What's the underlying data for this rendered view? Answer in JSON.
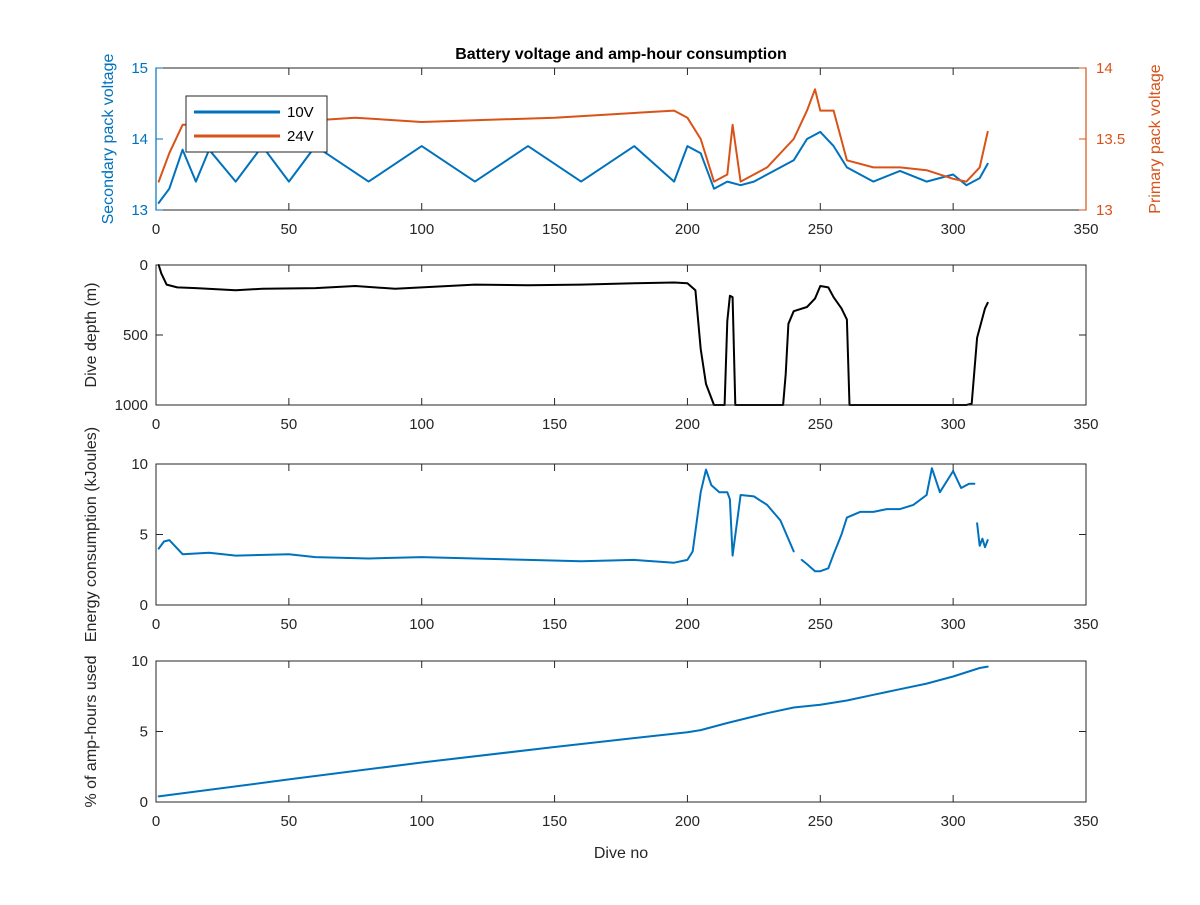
{
  "colors": {
    "series_10v": "#0072BD",
    "series_24v": "#D95319",
    "depth": "#000000",
    "energy": "#0072BD",
    "amp_hours": "#0072BD",
    "axis": "#262626",
    "grid": "#DFDFDF"
  },
  "chart_data": [
    {
      "type": "line",
      "title": "Battery voltage and amp-hour consumption",
      "xlabel": "",
      "ylabel": "Secondary pack voltage",
      "ylabel_right": "Primary pack voltage",
      "xlim": [
        0,
        350
      ],
      "ylim": [
        13,
        15
      ],
      "ylim_right": [
        13,
        14
      ],
      "x_ticks": [
        "0",
        "50",
        "100",
        "150",
        "200",
        "250",
        "300",
        "350"
      ],
      "y_ticks": [
        "13",
        "14",
        "15"
      ],
      "y_ticks_right": [
        "13",
        "13.5",
        "14"
      ],
      "grid": false,
      "legend": "top-left",
      "series": [
        {
          "name": "10V",
          "axis": "left",
          "pattern": "oscillating between about 13.4 and 13.9 for dives 0-200, then 13.2-14.2 afterwards",
          "x": [
            1,
            5,
            10,
            15,
            20,
            30,
            40,
            50,
            60,
            80,
            100,
            120,
            140,
            160,
            180,
            195,
            200,
            205,
            210,
            215,
            220,
            225,
            230,
            235,
            240,
            245,
            250,
            255,
            260,
            270,
            280,
            290,
            300,
            305,
            310,
            313
          ],
          "y": [
            13.1,
            13.3,
            13.85,
            13.4,
            13.85,
            13.4,
            13.9,
            13.4,
            13.9,
            13.4,
            13.9,
            13.4,
            13.9,
            13.4,
            13.9,
            13.4,
            13.9,
            13.8,
            13.3,
            13.4,
            13.35,
            13.4,
            13.5,
            13.6,
            13.7,
            14.0,
            14.1,
            13.9,
            13.6,
            13.4,
            13.55,
            13.4,
            13.5,
            13.35,
            13.45,
            13.65
          ]
        },
        {
          "name": "24V",
          "axis": "right",
          "x": [
            1,
            5,
            10,
            20,
            50,
            75,
            100,
            150,
            195,
            200,
            205,
            210,
            215,
            217,
            220,
            230,
            240,
            245,
            248,
            250,
            255,
            260,
            270,
            280,
            290,
            300,
            305,
            310,
            313
          ],
          "y": [
            13.2,
            13.4,
            13.6,
            13.6,
            13.62,
            13.65,
            13.62,
            13.65,
            13.7,
            13.65,
            13.5,
            13.2,
            13.25,
            13.6,
            13.2,
            13.3,
            13.5,
            13.7,
            13.85,
            13.7,
            13.7,
            13.35,
            13.3,
            13.3,
            13.28,
            13.22,
            13.2,
            13.3,
            13.55
          ]
        }
      ]
    },
    {
      "type": "line",
      "title": "",
      "xlabel": "",
      "ylabel": "Dive depth (m)",
      "xlim": [
        0,
        350
      ],
      "ylim": [
        1000,
        0
      ],
      "y_reversed": true,
      "x_ticks": [
        "0",
        "50",
        "100",
        "150",
        "200",
        "250",
        "300",
        "350"
      ],
      "y_ticks": [
        "0",
        "500",
        "1000"
      ],
      "grid": false,
      "series": [
        {
          "name": "",
          "x": [
            1,
            2,
            4,
            8,
            15,
            30,
            40,
            60,
            75,
            90,
            100,
            120,
            140,
            160,
            180,
            195,
            200,
            203,
            205,
            207,
            210,
            212,
            214,
            215,
            216,
            217,
            218,
            219,
            220,
            230,
            236,
            237,
            238,
            240,
            245,
            248,
            250,
            253,
            255,
            258,
            260,
            261,
            270,
            290,
            303,
            305,
            307,
            309,
            312,
            313
          ],
          "y": [
            0,
            60,
            140,
            160,
            165,
            180,
            170,
            165,
            150,
            170,
            160,
            140,
            145,
            140,
            130,
            125,
            130,
            180,
            600,
            850,
            1000,
            1000,
            1000,
            400,
            220,
            230,
            1000,
            1000,
            1000,
            1000,
            1000,
            780,
            420,
            330,
            300,
            240,
            150,
            160,
            230,
            310,
            390,
            1000,
            1000,
            1000,
            1000,
            1000,
            990,
            520,
            310,
            270
          ]
        }
      ]
    },
    {
      "type": "line",
      "title": "",
      "xlabel": "",
      "ylabel": "Energy consumption (kJoules)",
      "xlim": [
        0,
        350
      ],
      "ylim": [
        0,
        10
      ],
      "x_ticks": [
        "0",
        "50",
        "100",
        "150",
        "200",
        "250",
        "300",
        "350"
      ],
      "y_ticks": [
        "0",
        "5",
        "10"
      ],
      "grid": false,
      "series": [
        {
          "name": "",
          "segments": [
            {
              "pattern": "sawtooth oscillation between about 3.3 and 4.3 for dives 0-200",
              "x": [
                1,
                3,
                5,
                10,
                20,
                30,
                50,
                60,
                80,
                100,
                120,
                140,
                160,
                180,
                195,
                200,
                202,
                205,
                207,
                209,
                212,
                215,
                216,
                217,
                220,
                225,
                230,
                235,
                240
              ],
              "y": [
                4.0,
                4.5,
                4.6,
                3.6,
                3.7,
                3.5,
                3.6,
                3.4,
                3.3,
                3.4,
                3.3,
                3.2,
                3.1,
                3.2,
                3.0,
                3.2,
                3.8,
                8.0,
                9.6,
                8.5,
                8.0,
                8.0,
                7.5,
                3.5,
                7.8,
                7.7,
                7.1,
                6.0,
                3.8
              ]
            },
            {
              "x": [
                243,
                245,
                248,
                250,
                253,
                255,
                258,
                260,
                265,
                270,
                275,
                280,
                285,
                290,
                292,
                295,
                300,
                303,
                306,
                308
              ],
              "y": [
                3.2,
                2.9,
                2.4,
                2.4,
                2.6,
                3.6,
                5.0,
                6.2,
                6.6,
                6.6,
                6.8,
                6.8,
                7.1,
                7.8,
                9.7,
                8.0,
                9.5,
                8.3,
                8.6,
                8.6
              ]
            },
            {
              "x": [
                309,
                310,
                311,
                312,
                313
              ],
              "y": [
                5.8,
                4.2,
                4.7,
                4.1,
                4.6
              ]
            }
          ]
        }
      ]
    },
    {
      "type": "line",
      "title": "",
      "xlabel": "Dive no",
      "ylabel": "% of amp-hours used",
      "xlim": [
        0,
        350
      ],
      "ylim": [
        0,
        10
      ],
      "x_ticks": [
        "0",
        "50",
        "100",
        "150",
        "200",
        "250",
        "300",
        "350"
      ],
      "y_ticks": [
        "0",
        "5",
        "10"
      ],
      "grid": false,
      "series": [
        {
          "name": "",
          "x": [
            1,
            50,
            100,
            150,
            200,
            205,
            215,
            230,
            240,
            250,
            260,
            270,
            280,
            290,
            300,
            310,
            313
          ],
          "y": [
            0.4,
            1.6,
            2.8,
            3.9,
            4.95,
            5.1,
            5.6,
            6.3,
            6.7,
            6.9,
            7.2,
            7.6,
            8.0,
            8.4,
            8.9,
            9.5,
            9.6
          ]
        }
      ]
    }
  ]
}
